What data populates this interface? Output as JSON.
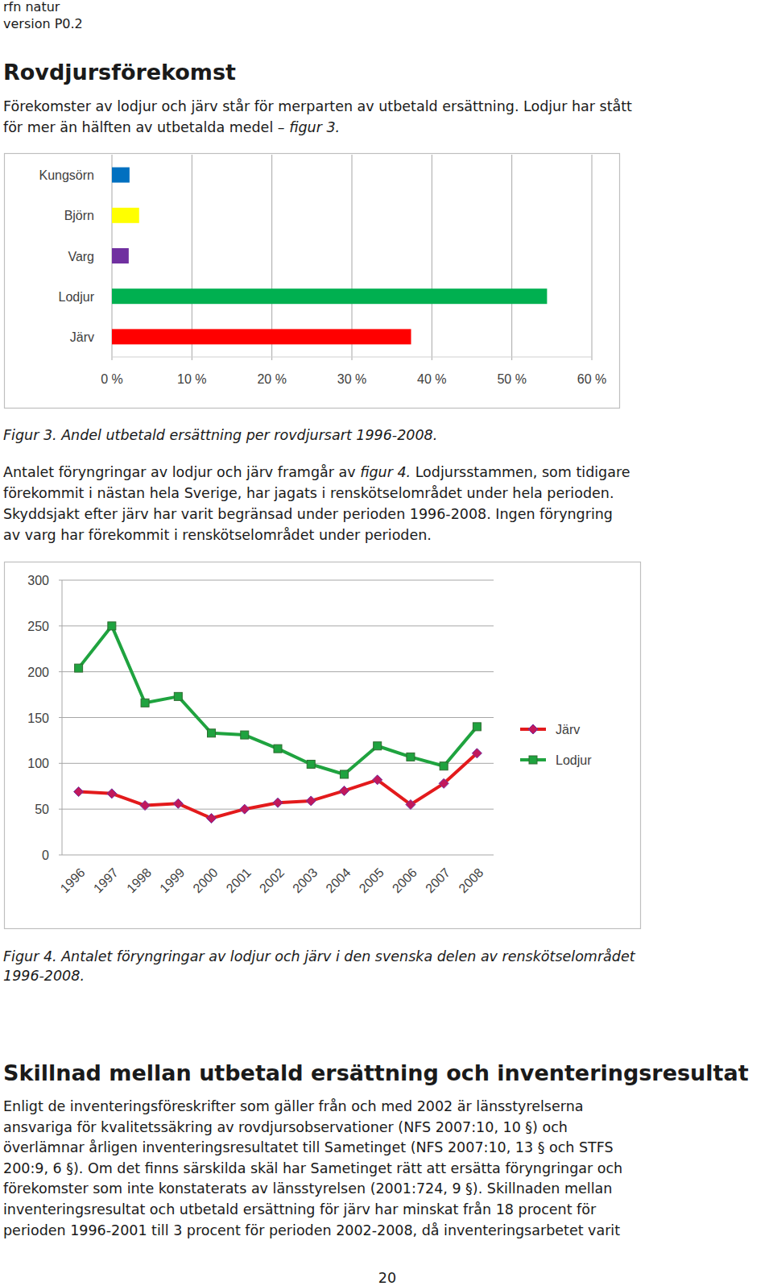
{
  "header": [
    "rfn natur",
    "version P0.2"
  ],
  "heading1": "Rovdjursförekomst",
  "paragraph1": [
    [
      "Förekomster av lodjur och järv står för merparten av utbetald ersättning. Lodjur har stått"
    ],
    [
      "för mer än hälften av utbetalda medel – ",
      "figur 3."
    ]
  ],
  "caption1": [
    "Figur 3. Andel utbetald ersättning per rovdjursart 1996-2008."
  ],
  "paragraph2": [
    [
      "Antalet föryngringar av lodjur och järv framgår av ",
      "figur 4.",
      " Lodjursstammen, som tidigare"
    ],
    [
      "förekommit i nästan hela Sverige, har jagats i renskötselområdet under hela perioden."
    ],
    [
      "Skyddsjakt efter järv har varit begränsad under perioden 1996-2008. Ingen föryngring"
    ],
    [
      "av varg har förekommit i renskötselområdet under perioden."
    ]
  ],
  "caption2": [
    "Figur 4. Antalet föryngringar av lodjur och järv i den svenska delen av renskötselområdet",
    "1996-2008."
  ],
  "heading2": "Skillnad mellan utbetald ersättning och inventeringsresultat",
  "paragraph3": [
    [
      "Enligt de inventeringsföreskrifter som gäller från och med 2002 är länsstyrelserna"
    ],
    [
      "ansvariga för kvalitetssäkring av rovdjursobservationer (NFS 2007:10, 10 §) och"
    ],
    [
      "överlämnar årligen inventeringsresultatet till Sametinget (NFS 2007:10, 13 § och STFS"
    ],
    [
      "200:9, 6 §). Om det finns särskilda skäl har Sametinget rätt att ersätta föryngringar och"
    ],
    [
      "förekomster som inte konstaterats av länsstyrelsen (2001:724, 9 §). Skillnaden mellan"
    ],
    [
      "inventeringsresultat och utbetald ersättning för järv har minskat från 18 procent för"
    ],
    [
      "perioden 1996-2001 till 3 procent för perioden 2002-2008, då inventeringsarbetet varit"
    ]
  ],
  "page_number": 20,
  "chart_data": [
    {
      "type": "bar",
      "orientation": "horizontal",
      "categories": [
        "Kungsörn",
        "Björn",
        "Varg",
        "Lodjur",
        "Järv"
      ],
      "values": [
        2.2,
        3.4,
        2.1,
        54.4,
        37.4
      ],
      "colors": [
        "#0070c0",
        "#ffff00",
        "#7030a0",
        "#00b050",
        "#ff0000"
      ],
      "xlim": [
        0,
        60
      ],
      "xticks": [
        {
          "value": 0,
          "label": "0 %"
        },
        {
          "value": 10,
          "label": "10 %"
        },
        {
          "value": 20,
          "label": "20 %"
        },
        {
          "value": 30,
          "label": "30 %"
        },
        {
          "value": 40,
          "label": "40 %"
        },
        {
          "value": 50,
          "label": "50 %"
        },
        {
          "value": 60,
          "label": "60 %"
        }
      ],
      "grid": true
    },
    {
      "type": "line",
      "categories": [
        "1996",
        "1997",
        "1998",
        "1999",
        "2000",
        "2001",
        "2002",
        "2003",
        "2004",
        "2005",
        "2006",
        "2007",
        "2008"
      ],
      "series": [
        {
          "name": "Järv",
          "color": "#e31a1c",
          "marker": "diamond",
          "values": [
            69,
            67,
            54,
            56,
            40,
            50,
            57,
            59,
            70,
            82,
            55,
            78,
            111
          ]
        },
        {
          "name": "Lodjur",
          "color": "#1fa33f",
          "marker": "square",
          "values": [
            204,
            250,
            166,
            173,
            133,
            131,
            116,
            99,
            88,
            119,
            107,
            97,
            140
          ]
        }
      ],
      "ylim": [
        0,
        300
      ],
      "yticks": [
        0,
        50,
        100,
        150,
        200,
        250,
        300
      ],
      "grid": true,
      "legend": "right"
    }
  ]
}
